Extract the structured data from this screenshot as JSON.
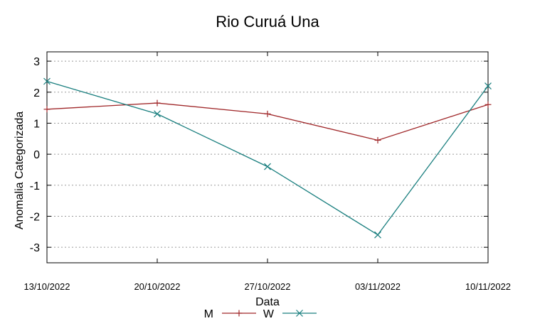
{
  "chart_data": {
    "type": "line",
    "title": "Rio Curuá Una",
    "xlabel": "Data",
    "ylabel": "Anomalia Categorizada",
    "x": [
      "13/10/2022",
      "20/10/2022",
      "27/10/2022",
      "03/11/2022",
      "10/11/2022"
    ],
    "ylim": [
      -3.5,
      3.3
    ],
    "yticks": [
      3,
      2,
      1,
      0,
      -1,
      -2,
      -3
    ],
    "grid": true,
    "legend_position": "bottom-center",
    "series": [
      {
        "name": "M",
        "color": "#a0282a",
        "marker": "plus",
        "values": [
          1.45,
          1.65,
          1.3,
          0.45,
          1.6
        ]
      },
      {
        "name": "W",
        "color": "#1a7f7f",
        "marker": "cross",
        "values": [
          2.35,
          1.3,
          -0.4,
          -2.6,
          2.2
        ]
      }
    ]
  }
}
